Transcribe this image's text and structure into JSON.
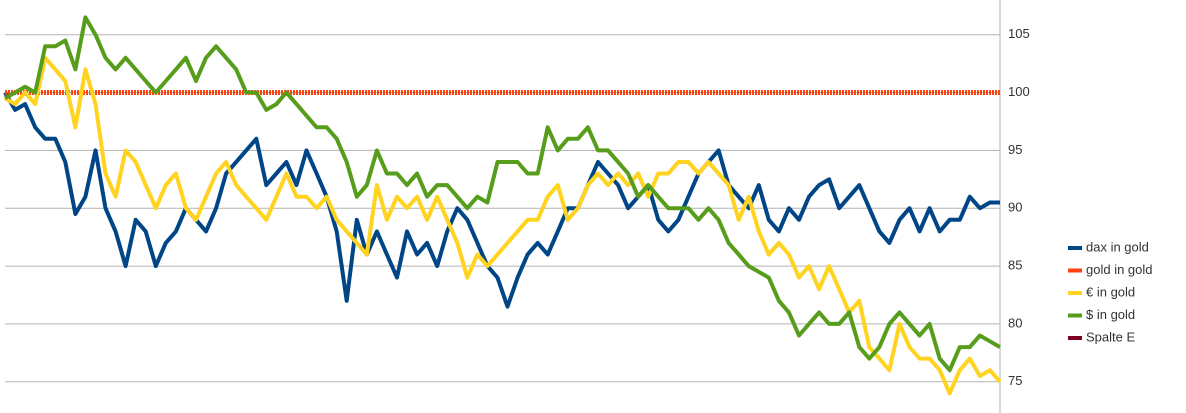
{
  "chart_data": {
    "type": "line",
    "ylim": [
      72.3,
      108
    ],
    "yticks": [
      75,
      80,
      85,
      90,
      95,
      100,
      105
    ],
    "grid": true,
    "legend": "right",
    "series": [
      {
        "name": "dax in gold",
        "color": "#004586",
        "values": [
          100,
          98.5,
          99,
          97,
          96,
          96,
          94,
          89.5,
          91,
          95,
          90,
          88,
          85,
          89,
          88,
          85,
          87,
          88,
          90,
          89,
          88,
          90,
          93,
          94,
          95,
          96,
          92,
          93,
          94,
          92,
          95,
          93,
          91,
          88,
          82,
          89,
          86,
          88,
          86,
          84,
          88,
          86,
          87,
          85,
          88,
          90,
          89,
          87,
          85,
          84,
          81.5,
          84,
          86,
          87,
          86,
          88,
          90,
          90,
          92,
          94,
          93,
          92,
          90,
          91,
          92,
          89,
          88,
          89,
          91,
          93,
          94,
          95,
          92,
          91,
          90,
          92,
          89,
          88,
          90,
          89,
          91,
          92,
          92.5,
          90,
          91,
          92,
          90,
          88,
          87,
          89,
          90,
          88,
          90,
          88,
          89,
          89,
          91,
          90,
          90.5,
          90.5
        ]
      },
      {
        "name": "gold in gold",
        "color": "#ff420e",
        "values": [
          100,
          100,
          100,
          100,
          100,
          100,
          100,
          100,
          100,
          100,
          100,
          100,
          100,
          100,
          100,
          100,
          100,
          100,
          100,
          100,
          100,
          100,
          100,
          100,
          100,
          100,
          100,
          100,
          100,
          100,
          100,
          100,
          100,
          100,
          100,
          100,
          100,
          100,
          100,
          100,
          100,
          100,
          100,
          100,
          100,
          100,
          100,
          100,
          100,
          100,
          100,
          100,
          100,
          100,
          100,
          100,
          100,
          100,
          100,
          100,
          100,
          100,
          100,
          100,
          100,
          100,
          100,
          100,
          100,
          100,
          100,
          100,
          100,
          100,
          100,
          100,
          100,
          100,
          100,
          100,
          100,
          100,
          100,
          100,
          100,
          100,
          100,
          100,
          100,
          100,
          100,
          100,
          100,
          100,
          100,
          100,
          100,
          100,
          100,
          100
        ]
      },
      {
        "name": "€ in gold",
        "color": "#ffd320",
        "values": [
          99.5,
          99,
          100,
          99,
          103,
          102,
          101,
          97,
          102,
          99,
          93,
          91,
          95,
          94,
          92,
          90,
          92,
          93,
          90,
          89,
          91,
          93,
          94,
          92,
          91,
          90,
          89,
          91,
          93,
          91,
          91,
          90,
          91,
          89,
          88,
          87,
          86,
          92,
          89,
          91,
          90,
          91,
          89,
          91,
          89,
          87,
          84,
          86,
          85,
          86,
          87,
          88,
          89,
          89,
          91,
          92,
          89,
          90,
          92,
          93,
          92,
          93,
          92,
          93,
          91,
          93,
          93,
          94,
          94,
          93,
          94,
          93,
          92,
          89,
          91,
          88,
          86,
          87,
          86,
          84,
          85,
          83,
          85,
          83,
          81,
          82,
          78,
          77,
          76,
          80,
          78,
          77,
          77,
          76,
          74,
          76,
          77,
          75.5,
          76,
          75
        ]
      },
      {
        "name": "$ in gold",
        "color": "#579d1c",
        "values": [
          99.5,
          100,
          100.5,
          100,
          104,
          104,
          104.5,
          102,
          106.5,
          105,
          103,
          102,
          103,
          102,
          101,
          100,
          101,
          102,
          103,
          101,
          103,
          104,
          103,
          102,
          100,
          100,
          98.5,
          99,
          100,
          99,
          98,
          97,
          97,
          96,
          94,
          91,
          92,
          95,
          93,
          93,
          92,
          93,
          91,
          92,
          92,
          91,
          90,
          91,
          90.5,
          94,
          94,
          94,
          93,
          93,
          97,
          95,
          96,
          96,
          97,
          95,
          95,
          94,
          93,
          91,
          92,
          91,
          90,
          90,
          90,
          89,
          90,
          89,
          87,
          86,
          85,
          84.5,
          84,
          82,
          81,
          79,
          80,
          81,
          80,
          80,
          81,
          78,
          77,
          78,
          80,
          81,
          80,
          79,
          80,
          77,
          76,
          78,
          78,
          79,
          78.5,
          78
        ]
      },
      {
        "name": "Spalte E",
        "color": "#7e0021",
        "values": []
      }
    ]
  }
}
